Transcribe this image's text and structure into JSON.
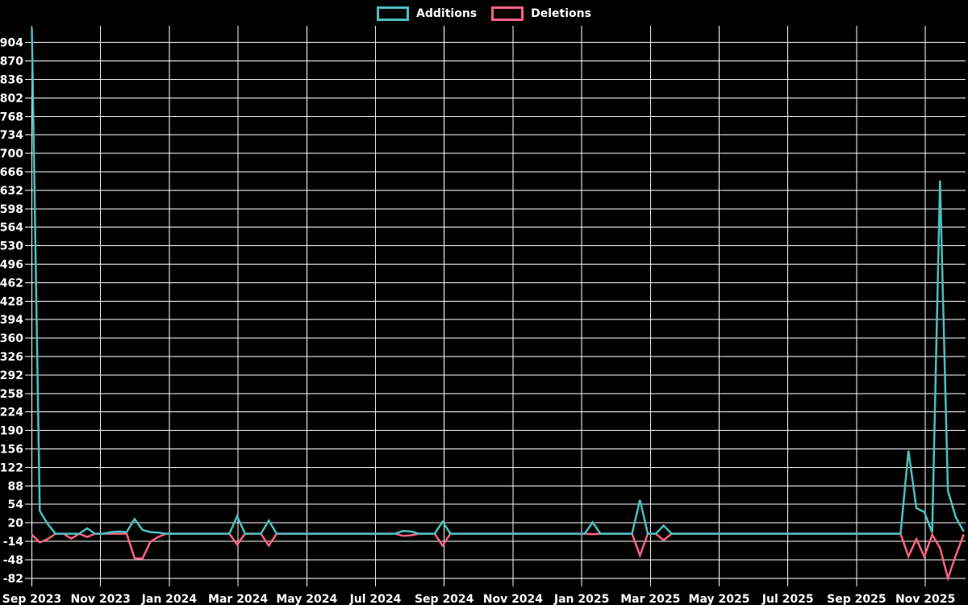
{
  "legend": {
    "items": [
      {
        "label": "Additions",
        "color": "#4bc0c0"
      },
      {
        "label": "Deletions",
        "color": "#ff6384"
      }
    ]
  },
  "chart_data": {
    "type": "line",
    "title": "",
    "background_color": "#000000",
    "grid_color": "#ffffff",
    "text_color": "#ffffff",
    "legend_position": "top",
    "x_unit": "week",
    "weeks_total": 119,
    "x_labels": [
      "Sep 2023",
      "Nov 2023",
      "Jan 2024",
      "Mar 2024",
      "May 2024",
      "Jul 2024",
      "Sep 2024",
      "Nov 2024",
      "Jan 2025",
      "Mar 2025",
      "May 2025",
      "Jul 2025",
      "Sep 2025",
      "Nov 2025"
    ],
    "y_ticks": [
      904,
      870,
      836,
      802,
      768,
      734,
      700,
      666,
      632,
      598,
      564,
      530,
      496,
      462,
      428,
      394,
      360,
      326,
      292,
      258,
      224,
      190,
      156,
      122,
      88,
      54,
      20,
      -14,
      -48,
      -82
    ],
    "ylim": [
      -82,
      938
    ],
    "grid": true,
    "series": [
      {
        "name": "Additions",
        "color": "#4bc0c0",
        "default_value": 0,
        "nonzero_points": [
          [
            0,
            930
          ],
          [
            1,
            42
          ],
          [
            2,
            18
          ],
          [
            7,
            10
          ],
          [
            10,
            3
          ],
          [
            11,
            4
          ],
          [
            12,
            3
          ],
          [
            13,
            27
          ],
          [
            14,
            7
          ],
          [
            15,
            3
          ],
          [
            16,
            2
          ],
          [
            26,
            32
          ],
          [
            30,
            24
          ],
          [
            47,
            5
          ],
          [
            48,
            4
          ],
          [
            52,
            22
          ],
          [
            71,
            21
          ],
          [
            77,
            62
          ],
          [
            80,
            15
          ],
          [
            111,
            153
          ],
          [
            112,
            47
          ],
          [
            113,
            40
          ],
          [
            114,
            2
          ],
          [
            115,
            650
          ],
          [
            116,
            79
          ],
          [
            117,
            30
          ],
          [
            118,
            4
          ]
        ]
      },
      {
        "name": "Deletions",
        "color": "#ff6384",
        "default_value": 0,
        "nonzero_points": [
          [
            0,
            -2
          ],
          [
            1,
            -16
          ],
          [
            2,
            -10
          ],
          [
            5,
            -9
          ],
          [
            7,
            -6
          ],
          [
            13,
            -45
          ],
          [
            14,
            -46
          ],
          [
            15,
            -15
          ],
          [
            16,
            -6
          ],
          [
            26,
            -20
          ],
          [
            30,
            -22
          ],
          [
            47,
            -4
          ],
          [
            48,
            -3
          ],
          [
            52,
            -22
          ],
          [
            71,
            -1
          ],
          [
            77,
            -40
          ],
          [
            80,
            -12
          ],
          [
            111,
            -42
          ],
          [
            112,
            -10
          ],
          [
            113,
            -42
          ],
          [
            114,
            -2
          ],
          [
            115,
            -26
          ],
          [
            116,
            -82
          ],
          [
            117,
            -40
          ],
          [
            118,
            -1
          ]
        ]
      }
    ]
  }
}
